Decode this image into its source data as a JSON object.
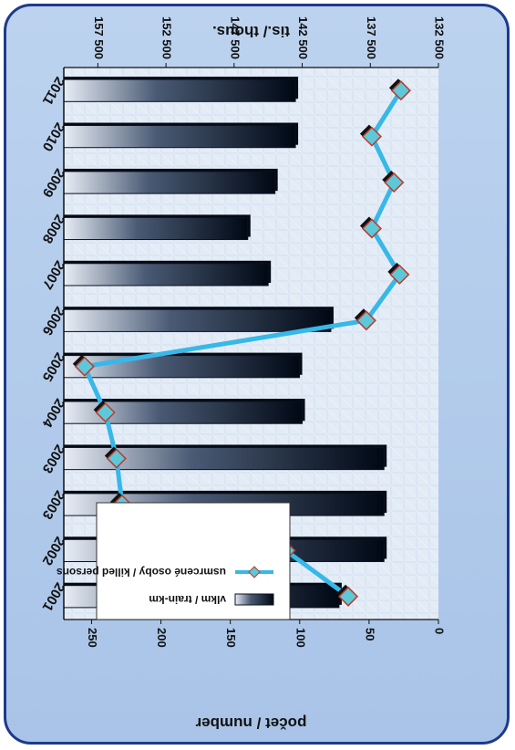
{
  "chart_data": {
    "type": "bar",
    "orientation": "rotated-180",
    "categories": [
      "2001",
      "2002",
      "2003",
      "2003",
      "2004",
      "2005",
      "2006",
      "2007",
      "2008",
      "2009",
      "2010",
      "2011"
    ],
    "series": [
      {
        "name": "vlkm / train-km",
        "type": "bar",
        "axis": "thous",
        "color": "#0d1b33",
        "values": [
          139800,
          136500,
          136500,
          136500,
          142500,
          142700,
          140400,
          145000,
          146500,
          144500,
          143000,
          143000
        ]
      },
      {
        "name": "usmrcené osoby / killed persons",
        "type": "line",
        "axis": "count",
        "color": "#38b8e8",
        "values": [
          65,
          110,
          228,
          232,
          240,
          255,
          52,
          28,
          48,
          32,
          48,
          27
        ]
      }
    ],
    "left_axis": {
      "label": "tis./ thous.",
      "min": 132500,
      "max": 160000,
      "ticks": [
        "132 500",
        "137 500",
        "142 500",
        "147 500",
        "152 500",
        "157 500"
      ],
      "tick_values": [
        132500,
        137500,
        142500,
        147500,
        152500,
        157500
      ]
    },
    "right_axis": {
      "label": "počet / number",
      "min": 0,
      "max": 270,
      "ticks": [
        "0",
        "50",
        "100",
        "150",
        "200",
        "250"
      ],
      "tick_values": [
        0,
        50,
        100,
        150,
        200,
        250
      ]
    },
    "legend": {
      "position": "inside-bottom",
      "items": [
        "vlkm / train-km",
        "usmrcené osoby / killed persons"
      ]
    },
    "grid": false
  }
}
